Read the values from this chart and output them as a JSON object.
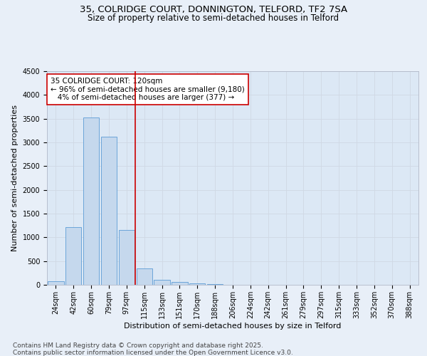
{
  "title_line1": "35, COLRIDGE COURT, DONNINGTON, TELFORD, TF2 7SA",
  "title_line2": "Size of property relative to semi-detached houses in Telford",
  "xlabel": "Distribution of semi-detached houses by size in Telford",
  "ylabel": "Number of semi-detached properties",
  "categories": [
    "24sqm",
    "42sqm",
    "60sqm",
    "79sqm",
    "97sqm",
    "115sqm",
    "133sqm",
    "151sqm",
    "170sqm",
    "188sqm",
    "206sqm",
    "224sqm",
    "242sqm",
    "261sqm",
    "279sqm",
    "297sqm",
    "315sqm",
    "333sqm",
    "352sqm",
    "370sqm",
    "388sqm"
  ],
  "values": [
    75,
    1220,
    3520,
    3120,
    1150,
    340,
    105,
    65,
    30,
    15,
    5,
    2,
    2,
    0,
    0,
    0,
    0,
    0,
    0,
    0,
    0
  ],
  "bar_color": "#c5d8ed",
  "bar_edge_color": "#5b9bd5",
  "property_line_x": 4.5,
  "annotation_text": "35 COLRIDGE COURT: 120sqm\n← 96% of semi-detached houses are smaller (9,180)\n   4% of semi-detached houses are larger (377) →",
  "annotation_box_color": "#ffffff",
  "annotation_box_edge": "#cc0000",
  "vline_color": "#cc0000",
  "ylim": [
    0,
    4500
  ],
  "yticks": [
    0,
    500,
    1000,
    1500,
    2000,
    2500,
    3000,
    3500,
    4000,
    4500
  ],
  "grid_color": "#d0d8e4",
  "bg_color": "#e8eff8",
  "plot_bg_color": "#dce8f5",
  "footer_line1": "Contains HM Land Registry data © Crown copyright and database right 2025.",
  "footer_line2": "Contains public sector information licensed under the Open Government Licence v3.0.",
  "title_fontsize": 9.5,
  "subtitle_fontsize": 8.5,
  "axis_label_fontsize": 8,
  "tick_fontsize": 7,
  "annotation_fontsize": 7.5,
  "footer_fontsize": 6.5
}
